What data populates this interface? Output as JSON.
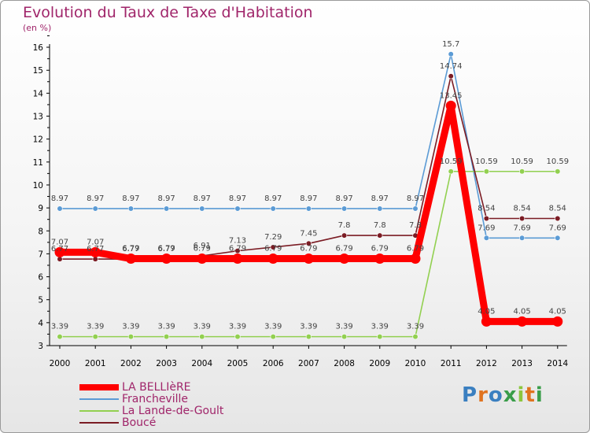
{
  "header": {
    "title": "Evolution du Taux de Taxe d'Habitation",
    "subtitle": "(en %)"
  },
  "logo": {
    "text": "Proxiti",
    "colors": [
      "#3a7fc0",
      "#e0731f",
      "#3a7fc0",
      "#3a9d4a",
      "#8cc63e",
      "#e0731f",
      "#3a9d4a"
    ]
  },
  "chart_data": {
    "type": "line",
    "x": [
      2000,
      2001,
      2002,
      2003,
      2004,
      2005,
      2006,
      2007,
      2008,
      2009,
      2010,
      2011,
      2012,
      2013,
      2014
    ],
    "ylim": [
      3,
      16
    ],
    "yticks": [
      3,
      4,
      5,
      6,
      7,
      8,
      9,
      10,
      11,
      12,
      13,
      14,
      15,
      16
    ],
    "grid": false,
    "legend_position": "bottom-left",
    "series": [
      {
        "name": "Francheville",
        "color": "#5b9bd5",
        "values": [
          8.97,
          8.97,
          8.97,
          8.97,
          8.97,
          8.97,
          8.97,
          8.97,
          8.97,
          8.97,
          8.97,
          15.7,
          7.69,
          7.69,
          7.69
        ],
        "labels": [
          "8.97",
          "8.97",
          "8.97",
          "8.97",
          "8.97",
          "8.97",
          "8.97",
          "8.97",
          "8.97",
          "8.97",
          "8.97",
          "15.7",
          "7.69",
          "7.69",
          "7.69"
        ]
      },
      {
        "name": "La Lande-de-Goult",
        "color": "#92d050",
        "values": [
          3.39,
          3.39,
          3.39,
          3.39,
          3.39,
          3.39,
          3.39,
          3.39,
          3.39,
          3.39,
          3.39,
          10.59,
          10.59,
          10.59,
          10.59
        ],
        "labels": [
          "3.39",
          "3.39",
          "3.39",
          "3.39",
          "3.39",
          "3.39",
          "3.39",
          "3.39",
          "3.39",
          "3.39",
          "3.39",
          "10.59",
          "10.59",
          "10.59",
          "10.59"
        ]
      },
      {
        "name": "Boucé",
        "color": "#7b1c24",
        "values": [
          6.77,
          6.77,
          6.77,
          6.77,
          6.91,
          7.13,
          7.29,
          7.45,
          7.8,
          7.8,
          7.8,
          14.74,
          8.54,
          8.54,
          8.54
        ],
        "labels": [
          "6.77",
          "6.77",
          "6.77",
          "6.77",
          "6.91",
          "7.13",
          "7.29",
          "7.45",
          "7.8",
          "7.8",
          "7.8",
          "14.74",
          "8.54",
          "8.54",
          "8.54"
        ]
      },
      {
        "name": "LA BELLIèRE",
        "color": "#ff0000",
        "values": [
          7.07,
          7.07,
          6.79,
          6.79,
          6.79,
          6.79,
          6.79,
          6.79,
          6.79,
          6.79,
          6.79,
          13.45,
          4.05,
          4.05,
          4.05
        ],
        "labels": [
          "7.07",
          "7.07",
          "6.79",
          "6.79",
          "6.79",
          "6.79",
          "6.79",
          "6.79",
          "6.79",
          "6.79",
          "6.79",
          "13.45",
          "4.05",
          "4.05",
          "4.05"
        ]
      }
    ]
  },
  "legend": {
    "items": [
      {
        "label": "LA BELLIèRE",
        "color": "#ff0000",
        "width": 8
      },
      {
        "label": "Francheville",
        "color": "#5b9bd5",
        "width": 2
      },
      {
        "label": "La Lande-de-Goult",
        "color": "#92d050",
        "width": 2
      },
      {
        "label": "Boucé",
        "color": "#7b1c24",
        "width": 2
      }
    ]
  }
}
